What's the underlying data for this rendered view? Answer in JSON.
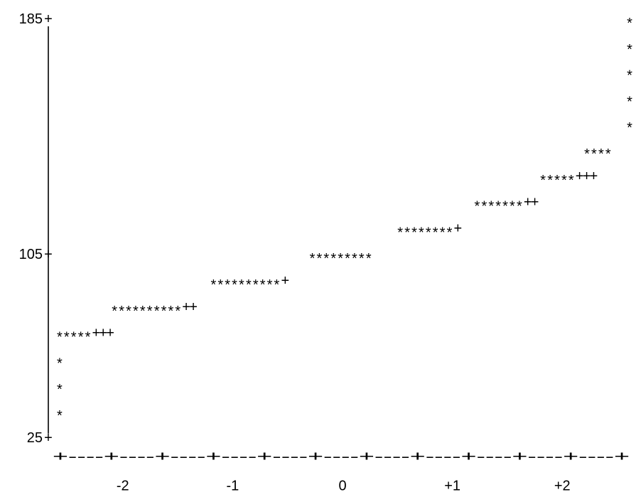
{
  "chart_data": {
    "type": "scatter",
    "style": "ascii-text-plot",
    "title": "",
    "xlabel": "",
    "ylabel": "",
    "xlim": [
      -2.6,
      2.6
    ],
    "ylim": [
      25,
      185
    ],
    "y_ticks": [
      {
        "value": 185,
        "label": "185"
      },
      {
        "value": 105,
        "label": "105"
      },
      {
        "value": 25,
        "label": "25"
      }
    ],
    "x_ticks": [
      {
        "value": -2,
        "label": "-2"
      },
      {
        "value": -1,
        "label": "-1"
      },
      {
        "value": 0,
        "label": "0"
      },
      {
        "value": 1,
        "label": "+1"
      },
      {
        "value": 2,
        "label": "+2"
      }
    ],
    "x_axis_line": "+----+----+----+----+----+----+----+----+----+----+----+",
    "marker": "*",
    "reference_marker": "+",
    "rows": [
      {
        "y": 185,
        "text": "*",
        "x": 2.6
      },
      {
        "y": 178,
        "text": "*",
        "x": 2.6
      },
      {
        "y": 164,
        "text": "*",
        "x": 2.6
      },
      {
        "y": 157,
        "text": "*",
        "x": 2.6
      },
      {
        "y": 150,
        "text": "*",
        "x": 2.6
      },
      {
        "y": 143,
        "text": "****",
        "x": 2.2
      },
      {
        "y": 136,
        "text": "*****+++",
        "x": 1.8
      },
      {
        "y": 129,
        "text": "*******++",
        "x": 1.2
      },
      {
        "y": 122,
        "text": "********+",
        "x": 0.5
      },
      {
        "y": 115,
        "text": "*********",
        "x": -0.3
      },
      {
        "y": 108,
        "text": "**********+",
        "x": -1.2
      },
      {
        "y": 101,
        "text": "**********++",
        "x": -2.1
      },
      {
        "y": 94,
        "text": "*****+++",
        "x": -2.6
      },
      {
        "y": 87,
        "text": "*",
        "x": -2.6
      },
      {
        "y": 80,
        "text": "*",
        "x": -2.6
      },
      {
        "y": 73,
        "text": "*",
        "x": -2.6
      }
    ]
  }
}
